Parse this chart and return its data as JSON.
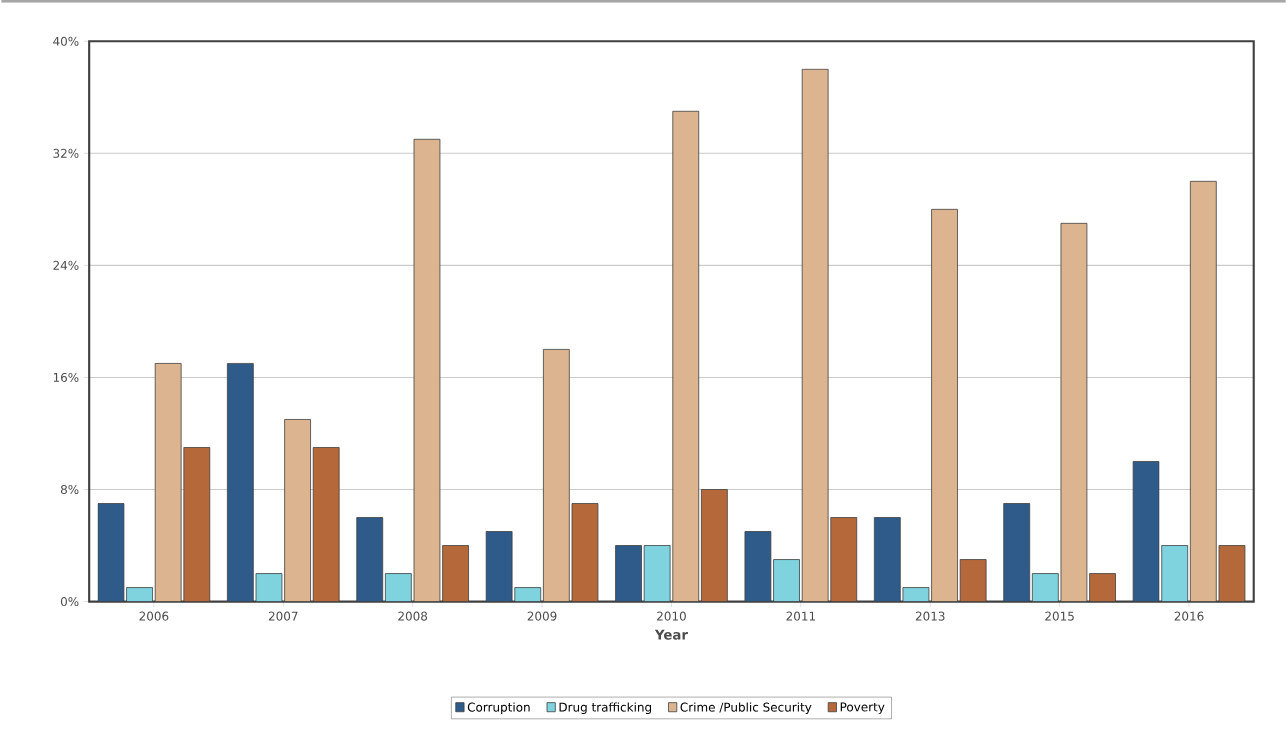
{
  "chart_data": {
    "type": "bar",
    "xlabel": "Year",
    "categories": [
      "2006",
      "2007",
      "2008",
      "2009",
      "2010",
      "2011",
      "2013",
      "2015",
      "2016"
    ],
    "series": [
      {
        "name": "Corruption",
        "color": "#2e5b8a",
        "values": [
          7,
          17,
          6,
          5,
          4,
          5,
          6,
          7,
          10
        ]
      },
      {
        "name": "Drug trafficking",
        "color": "#7fd3de",
        "values": [
          1,
          2,
          2,
          1,
          4,
          3,
          1,
          2,
          4
        ]
      },
      {
        "name": "Crime /Public Security",
        "color": "#dcb48f",
        "values": [
          17,
          13,
          33,
          18,
          35,
          38,
          28,
          27,
          30
        ]
      },
      {
        "name": "Poverty",
        "color": "#b5683a",
        "values": [
          11,
          11,
          4,
          7,
          8,
          6,
          3,
          2,
          4
        ]
      }
    ],
    "ylim": [
      0,
      40
    ],
    "yticks": [
      {
        "value": 0,
        "label": "0%"
      },
      {
        "value": 8,
        "label": "8%"
      },
      {
        "value": 16,
        "label": "16%"
      },
      {
        "value": 24,
        "label": "24%"
      },
      {
        "value": 32,
        "label": "32%"
      },
      {
        "value": 40,
        "label": "40%"
      }
    ],
    "grid": "y",
    "legend": "bottom"
  }
}
